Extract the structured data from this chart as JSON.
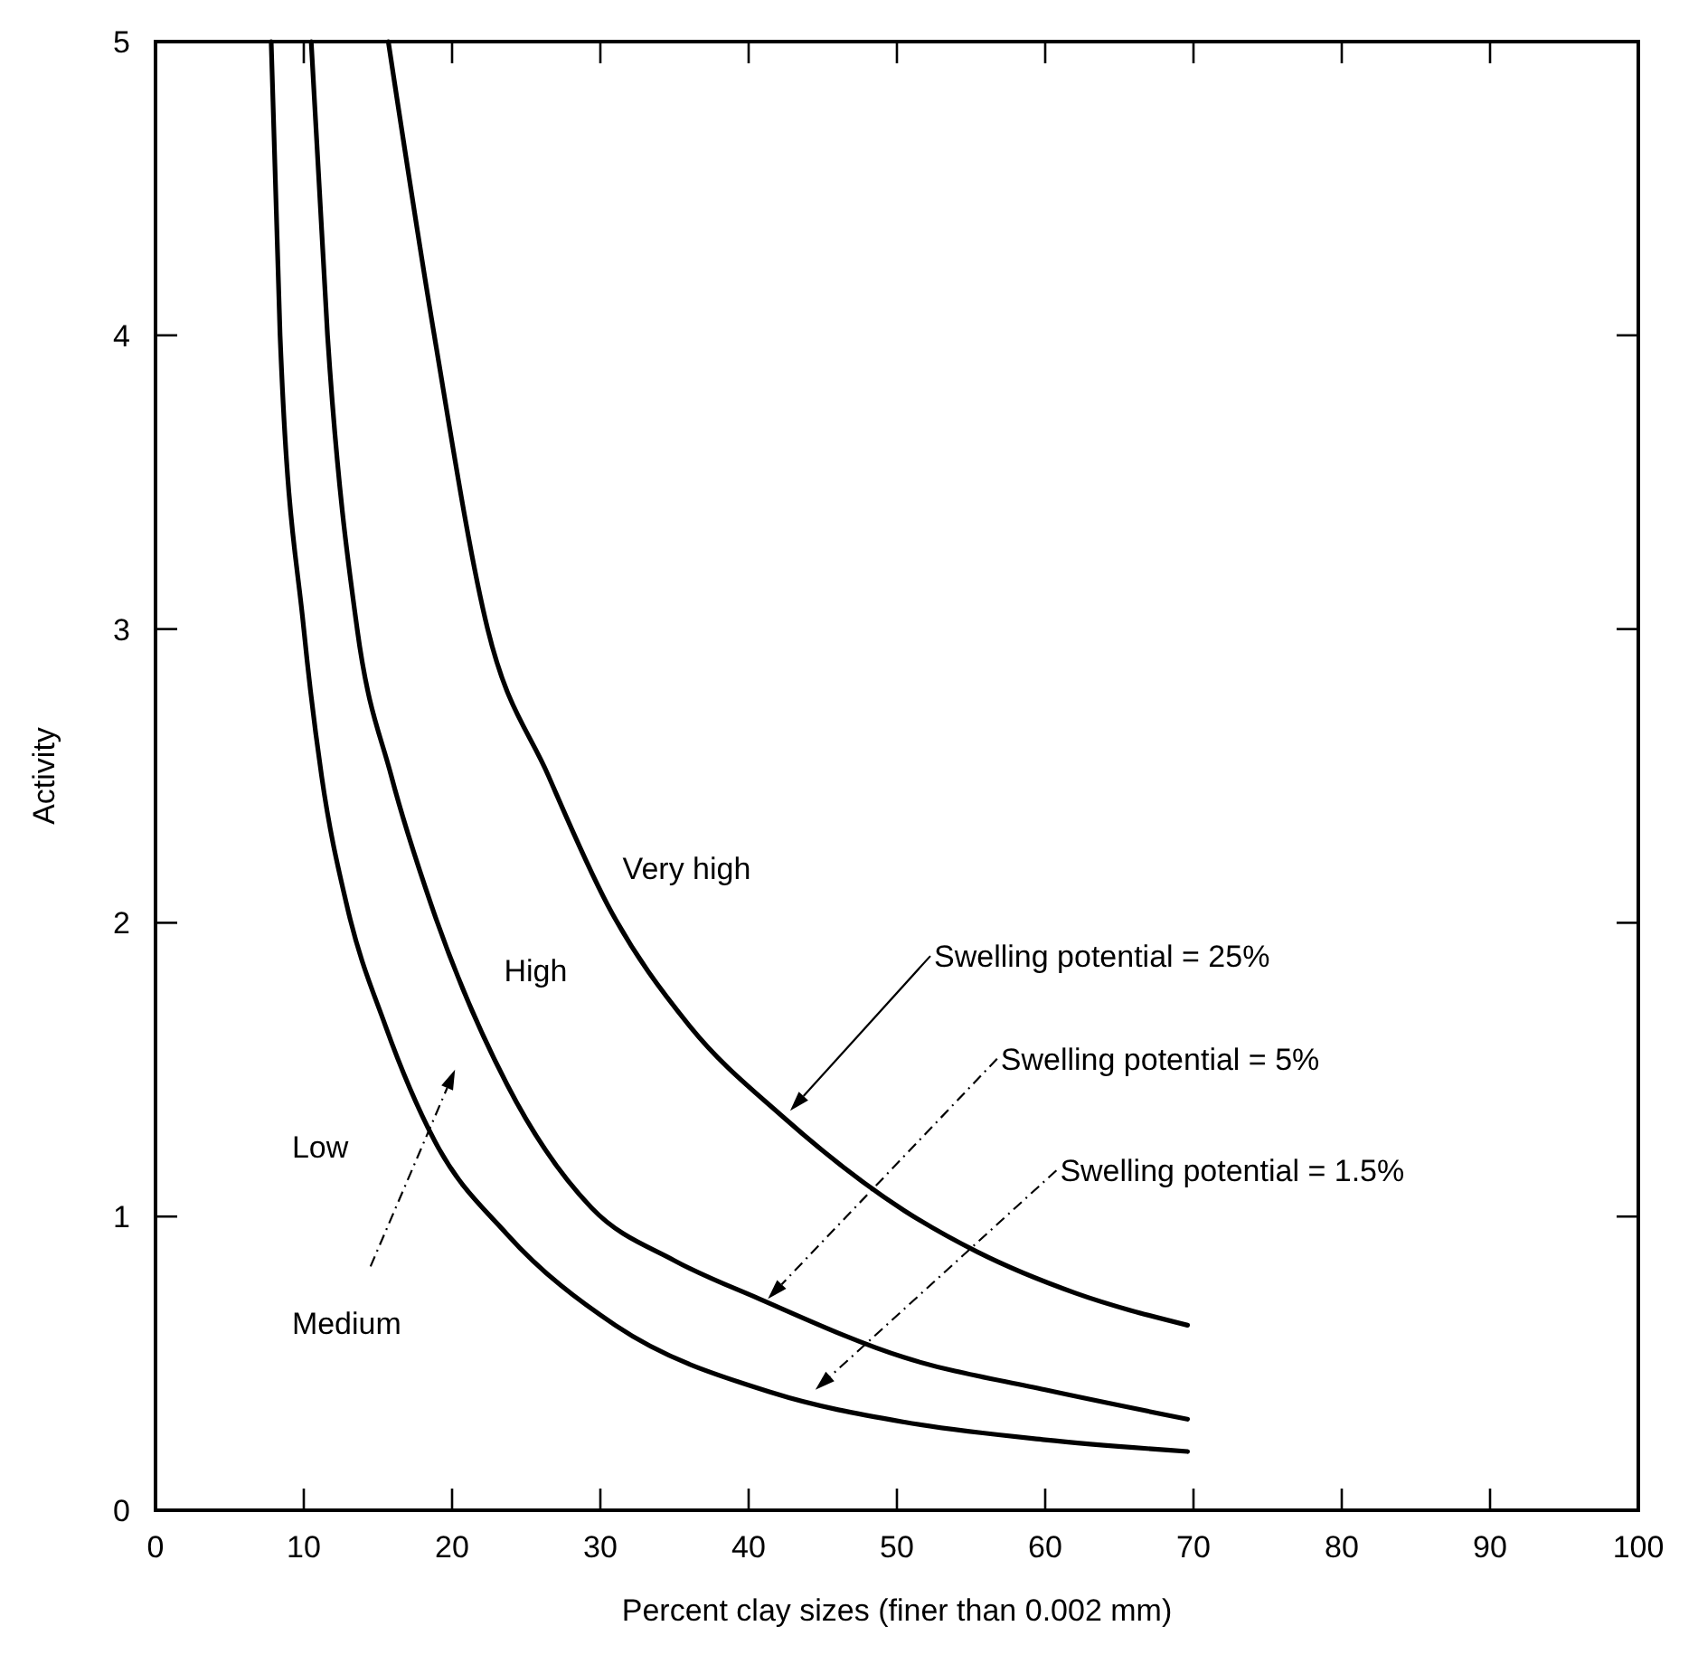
{
  "chart_data": {
    "type": "line",
    "xlabel": "Percent clay sizes (finer than 0.002 mm)",
    "ylabel": "Activity",
    "xlim": [
      0,
      100
    ],
    "ylim": [
      0,
      5
    ],
    "xticks": [
      0,
      10,
      20,
      30,
      40,
      50,
      60,
      70,
      80,
      90,
      100
    ],
    "yticks": [
      0,
      1,
      2,
      3,
      4,
      5
    ],
    "grid": false,
    "marker": "none",
    "line_style": "solid",
    "series": [
      {
        "color": "#000000",
        "x": [
          15.7,
          18.8,
          22.4,
          26.5,
          30.5,
          36,
          42.3,
          50.5,
          55.4,
          62,
          69.6
        ],
        "values": [
          5,
          4,
          3,
          2.5,
          2.06,
          1.65,
          1.34,
          1.02,
          0.88,
          0.74,
          0.63
        ]
      },
      {
        "color": "#000000",
        "x": [
          10.5,
          11.6,
          13.6,
          15.9,
          18.6,
          23.7,
          29.4,
          35,
          40.7,
          50.5,
          60,
          69.6
        ],
        "values": [
          5,
          4,
          3,
          2.5,
          2.06,
          1.45,
          1.03,
          0.85,
          0.72,
          0.52,
          0.41,
          0.31
        ]
      },
      {
        "color": "#000000",
        "x": [
          7.8,
          8.4,
          10.0,
          11.2,
          12.9,
          15.5,
          18.8,
          23.7,
          31.0,
          41.6,
          50.5,
          60,
          69.6
        ],
        "values": [
          5,
          4,
          3,
          2.5,
          2.06,
          1.65,
          1.26,
          0.94,
          0.63,
          0.4,
          0.3,
          0.24,
          0.2
        ]
      }
    ],
    "annotations": [
      "Very high",
      "High",
      "Low",
      "Medium",
      "Swelling potential = 25%",
      "Swelling potential = 5%",
      "Swelling potential = 1.5%"
    ]
  }
}
